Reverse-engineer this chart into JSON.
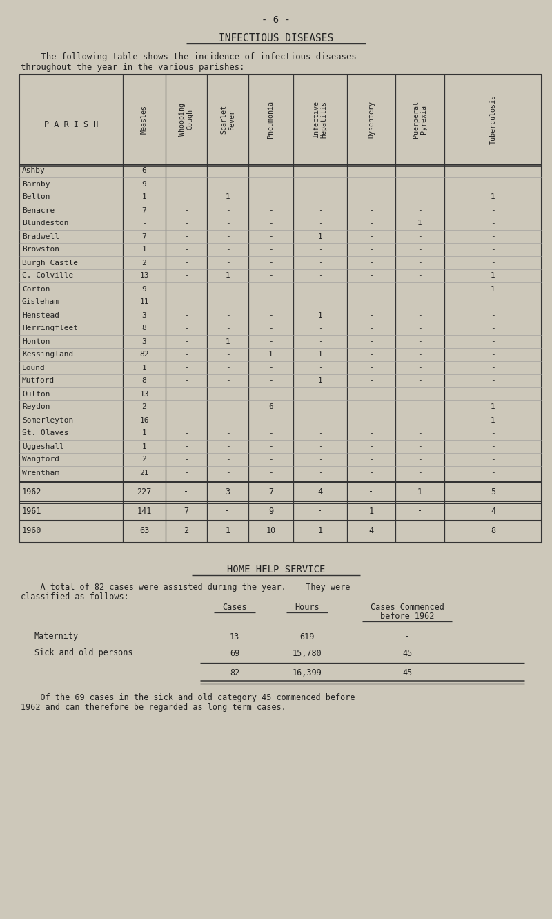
{
  "page_num": "- 6 -",
  "title": "INFECTIOUS DISEASES",
  "intro_line1": "    The following table shows the incidence of infectious diseases",
  "intro_line2": "throughout the year in the various parishes:",
  "bg_color": "#cdc8ba",
  "text_color": "#222222",
  "col_headers": [
    "PARISH",
    "Measles",
    "Whooping\nCough",
    "Scarlet\nFever",
    "Pneumonia",
    "Infective\nHepatitis",
    "Dysentery",
    "Puerperal\nPyrexia",
    "Tuberculosis"
  ],
  "parish_rows": [
    [
      "Ashby",
      "6",
      "-",
      "-",
      "-",
      "-",
      "-",
      "-",
      "-"
    ],
    [
      "Barnby",
      "9",
      "-",
      "-",
      "-",
      "-",
      "-",
      "-",
      "-"
    ],
    [
      "Belton",
      "1",
      "-",
      "1",
      "-",
      "-",
      "-",
      "-",
      "1"
    ],
    [
      "Benacre",
      "7",
      "-",
      "-",
      "-",
      "-",
      "-",
      "-",
      "-"
    ],
    [
      "Blundeston",
      "-",
      "-",
      "-",
      "-",
      "-",
      "-",
      "1",
      "-"
    ],
    [
      "Bradwell",
      "7",
      "-",
      "-",
      "-",
      "1",
      "-",
      "-",
      "-"
    ],
    [
      "Browston",
      "1",
      "-",
      "-",
      "-",
      "-",
      "-",
      "-",
      "-"
    ],
    [
      "Burgh Castle",
      "2",
      "-",
      "-",
      "-",
      "-",
      "-",
      "-",
      "-"
    ],
    [
      "C. Colville",
      "13",
      "-",
      "1",
      "-",
      "-",
      "-",
      "-",
      "1"
    ],
    [
      "Corton",
      "9",
      "-",
      "-",
      "-",
      "-",
      "-",
      "-",
      "1"
    ],
    [
      "Gisleham",
      "11",
      "-",
      "-",
      "-",
      "-",
      "-",
      "-",
      "-"
    ],
    [
      "Henstead",
      "3",
      "-",
      "-",
      "-",
      "1",
      "-",
      "-",
      "-"
    ],
    [
      "Herringfleet",
      "8",
      "-",
      "-",
      "-",
      "-",
      "-",
      "-",
      "-"
    ],
    [
      "Honton",
      "3",
      "-",
      "1",
      "-",
      "-",
      "-",
      "-",
      "-"
    ],
    [
      "Kessingland",
      "82",
      "-",
      "-",
      "1",
      "1",
      "-",
      "-",
      "-"
    ],
    [
      "Lound",
      "1",
      "-",
      "-",
      "-",
      "-",
      "-",
      "-",
      "-"
    ],
    [
      "Mutford",
      "8",
      "-",
      "-",
      "-",
      "1",
      "-",
      "-",
      "-"
    ],
    [
      "Oulton",
      "13",
      "-",
      "-",
      "-",
      "-",
      "-",
      "-",
      "-"
    ],
    [
      "Reydon",
      "2",
      "-",
      "-",
      "6",
      "-",
      "-",
      "-",
      "1"
    ],
    [
      "Somerleyton",
      "16",
      "-",
      "-",
      "-",
      "-",
      "-",
      "-",
      "1"
    ],
    [
      "St. Olaves",
      "1",
      "-",
      "-",
      "-",
      "-",
      "-",
      "-",
      "-"
    ],
    [
      "Uggeshall",
      "1",
      "-",
      "-",
      "-",
      "-",
      "-",
      "-",
      "-"
    ],
    [
      "Wangford",
      "2",
      "-",
      "-",
      "-",
      "-",
      "-",
      "-",
      "-"
    ],
    [
      "Wrentham",
      "21",
      "-",
      "-",
      "-",
      "-",
      "-",
      "-",
      "-"
    ]
  ],
  "year_rows": [
    [
      "1962",
      "227",
      "-",
      "3",
      "7",
      "4",
      "-",
      "1",
      "5"
    ],
    [
      "1961",
      "141",
      "7",
      "-",
      "9",
      "-",
      "1",
      "-",
      "4"
    ],
    [
      "1960",
      "63",
      "2",
      "1",
      "10",
      "1",
      "4",
      "-",
      "8"
    ]
  ],
  "home_help_title": "HOME HELP SERVICE",
  "home_help_intro1": "    A total of 82 cases were assisted during the year.    They were",
  "home_help_intro2": "classified as follows:-",
  "hh_col1_header": "Cases",
  "hh_col2_header": "Hours",
  "hh_col3_header1": "Cases Commenced",
  "hh_col3_header2": "before 1962",
  "home_help_rows": [
    [
      "Maternity",
      "13",
      "619",
      "-"
    ],
    [
      "Sick and old persons",
      "69",
      "15,780",
      "45"
    ]
  ],
  "home_help_totals": [
    "",
    "82",
    "16,399",
    "45"
  ],
  "home_help_footer1": "    Of the 69 cases in the sick and old category 45 commenced before",
  "home_help_footer2": "1962 and can therefore be regarded as long term cases."
}
